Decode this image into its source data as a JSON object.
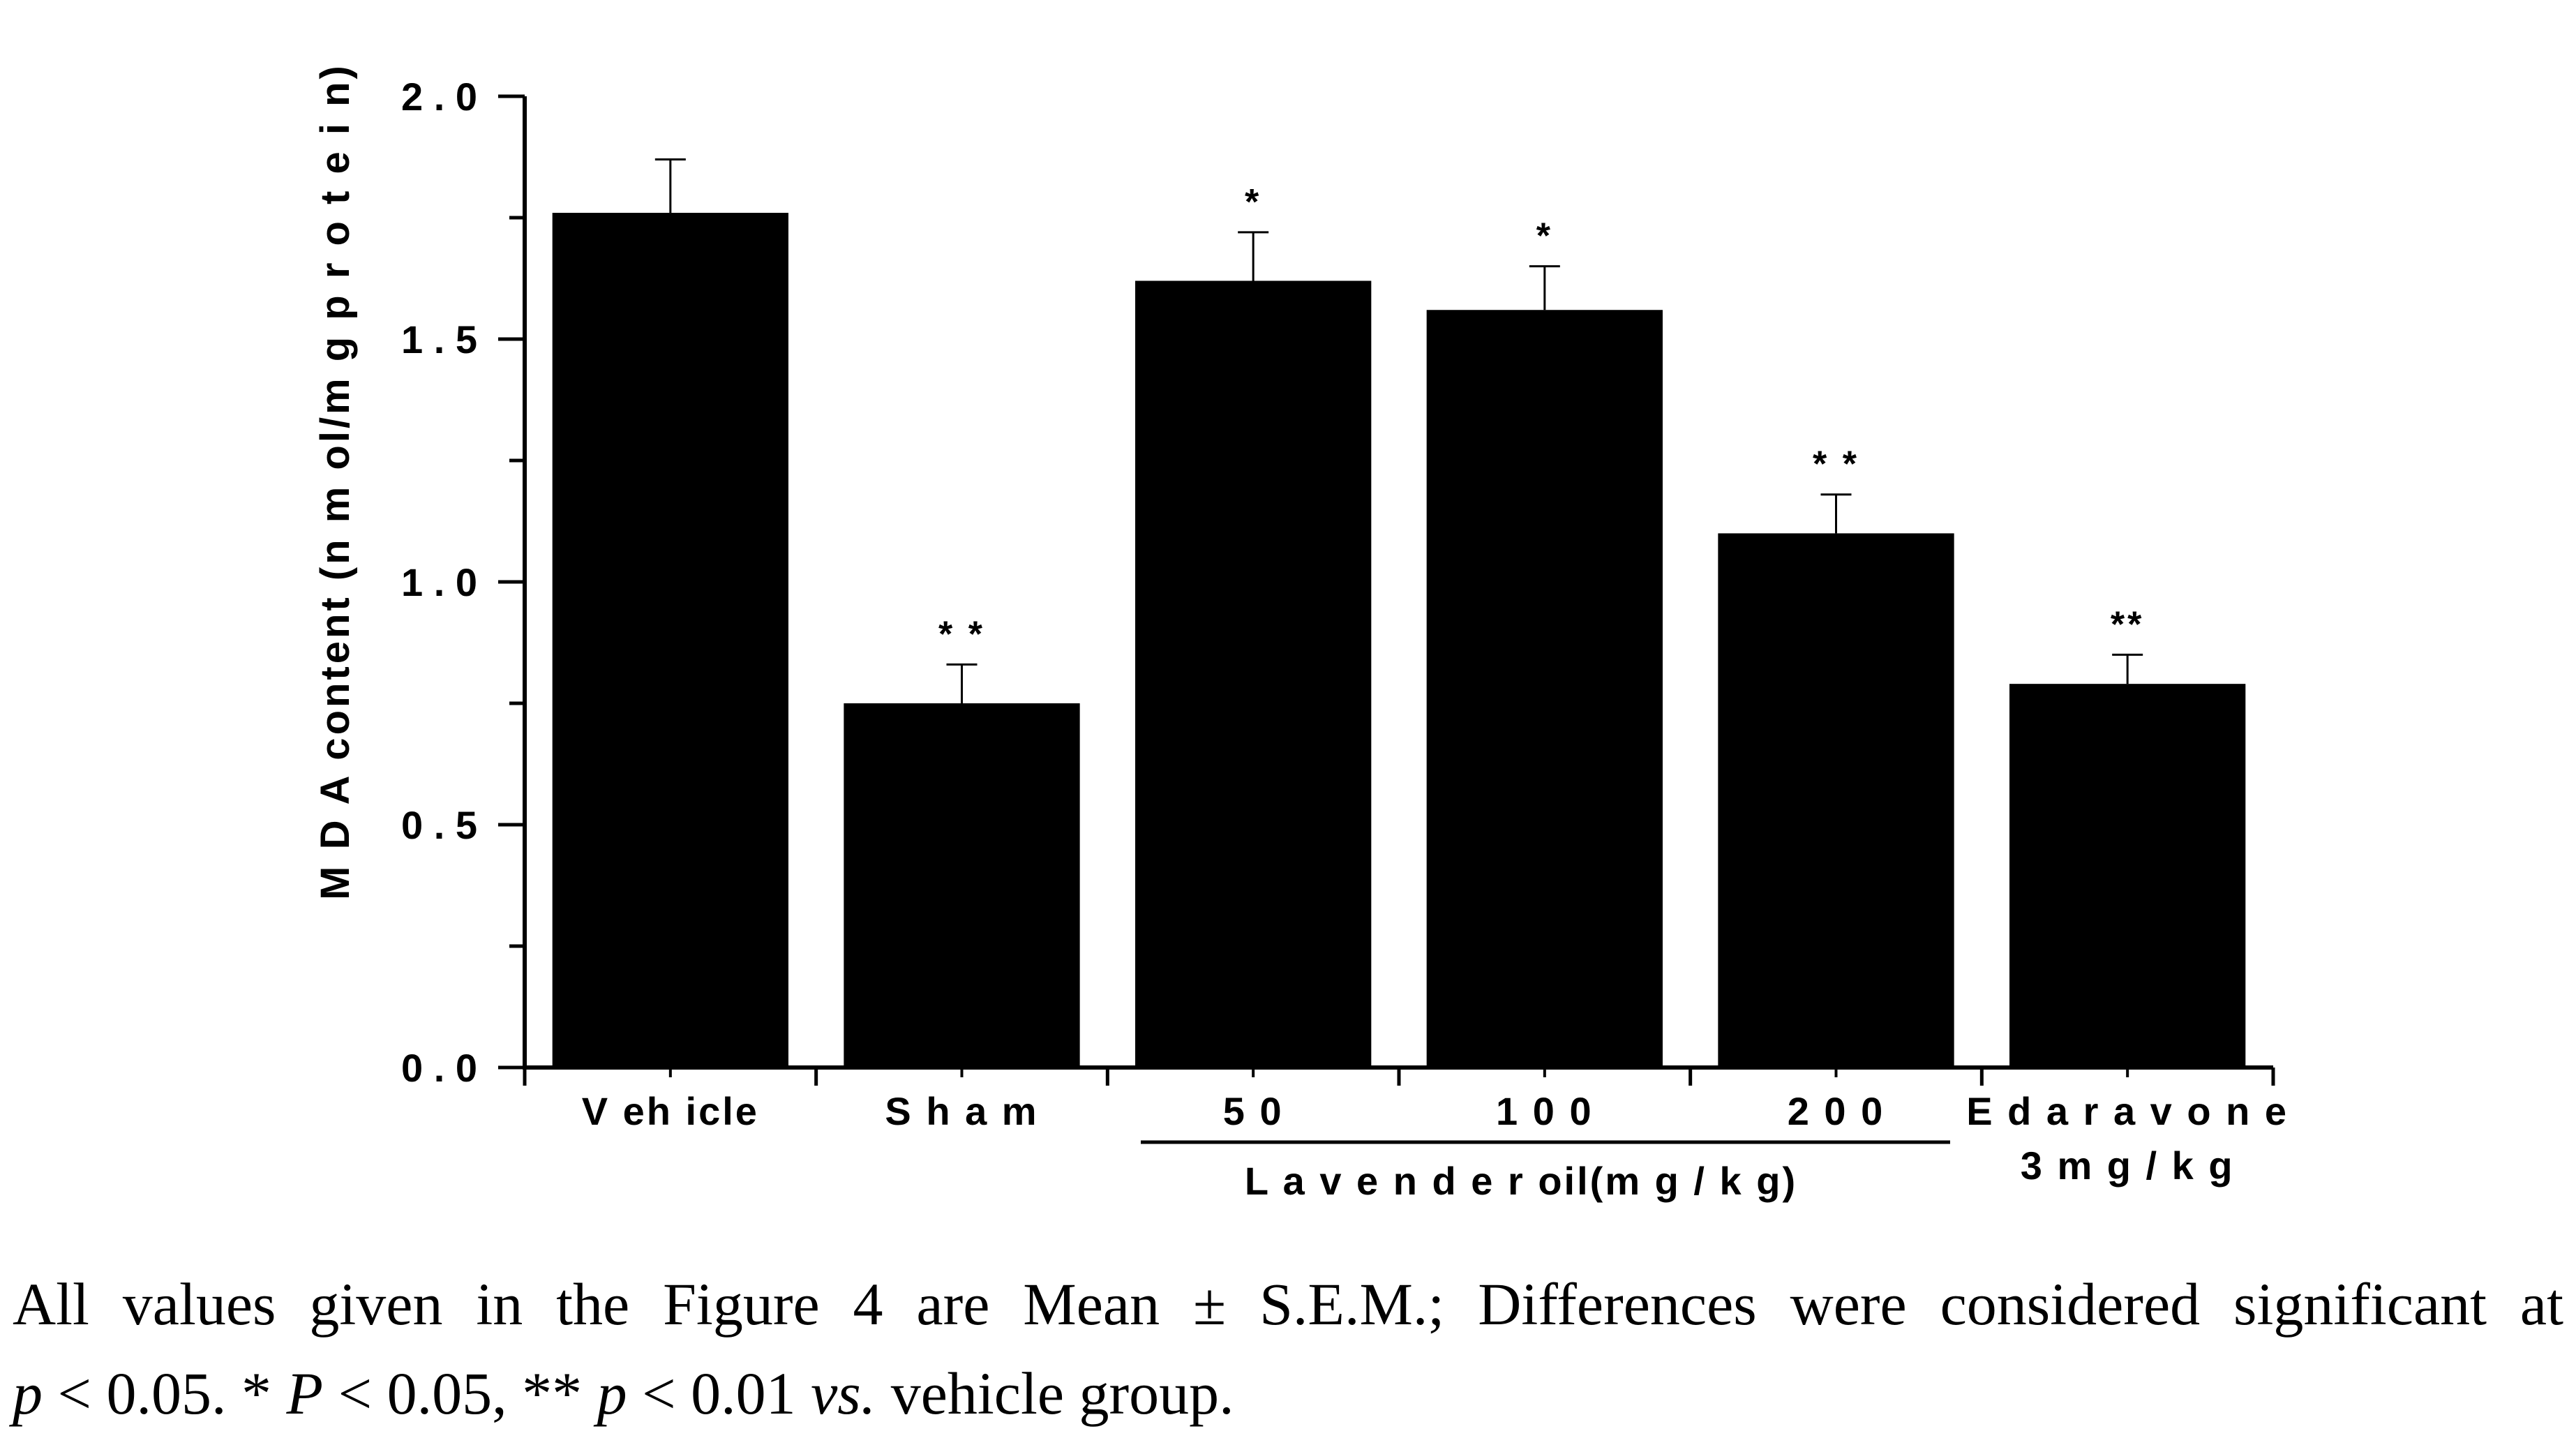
{
  "chart_data": {
    "type": "bar",
    "ylabel": "M D A  content (n m ol/m g  p r o t e i n)",
    "ylim": [
      0,
      2.0
    ],
    "yticks": [
      "0 . 0",
      "0 . 5",
      "1 . 0",
      "1 . 5",
      "2 . 0"
    ],
    "ytick_values": [
      0,
      0.5,
      1.0,
      1.5,
      2.0
    ],
    "categories": [
      "V eh icle",
      "S h a m",
      "5 0",
      "1 0 0",
      "2 0 0",
      "E d a r a v o n e"
    ],
    "category_sublabels": [
      "",
      "",
      "",
      "",
      "",
      "3  m g / k g"
    ],
    "values": [
      1.76,
      0.75,
      1.62,
      1.56,
      1.1,
      0.79
    ],
    "errors": [
      0.11,
      0.08,
      0.1,
      0.09,
      0.08,
      0.06
    ],
    "significance": [
      "",
      "* *",
      "*",
      "*",
      "* *",
      "**"
    ],
    "group_label": "L a v e n d e r  oil(m g / k g)",
    "bar_color": "#000000",
    "grid": false
  },
  "caption": {
    "line1": "All values given in the Figure 4 are Mean ± S.E.M.; Differences were considered significant at",
    "line2_p1": "p",
    "line2_t1": " < 0.05. * ",
    "line2_P": "P",
    "line2_t2": " < 0.05, ** ",
    "line2_p2": "p",
    "line2_t3": " < 0.01 ",
    "line2_vs": "vs.",
    "line2_t4": " vehicle group."
  }
}
